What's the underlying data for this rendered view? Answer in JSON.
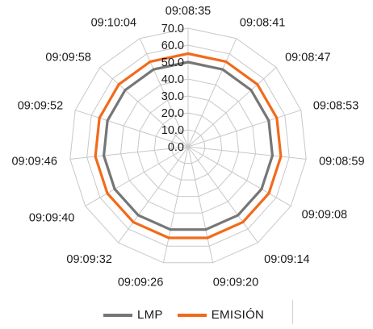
{
  "chart_data": {
    "type": "radar",
    "title": "",
    "categories": [
      "09:08:35",
      "09:08:41",
      "09:08:47",
      "09:08:53",
      "09:08:59",
      "09:09:08",
      "09:09:14",
      "09:09:20",
      "09:09:26",
      "09:09:32",
      "09:09:40",
      "09:09:46",
      "09:09:52",
      "09:09:58",
      "09:10:04"
    ],
    "rlim": [
      0,
      70
    ],
    "rticks": [
      "0.0",
      "10.0",
      "20.0",
      "30.0",
      "40.0",
      "50.0",
      "60.0",
      "70.0"
    ],
    "grid": true,
    "legend_position": "bottom",
    "series": [
      {
        "name": "LMP",
        "color": "#767676",
        "values": [
          50,
          50,
          50,
          50,
          50,
          50,
          50,
          50,
          50,
          50,
          50,
          50,
          50,
          50,
          50
        ]
      },
      {
        "name": "EMISIÓN",
        "color": "#F26A1B",
        "values": [
          55,
          55,
          55,
          55,
          55,
          55,
          55,
          55,
          55,
          55,
          55,
          55,
          55,
          55,
          55
        ]
      }
    ]
  }
}
